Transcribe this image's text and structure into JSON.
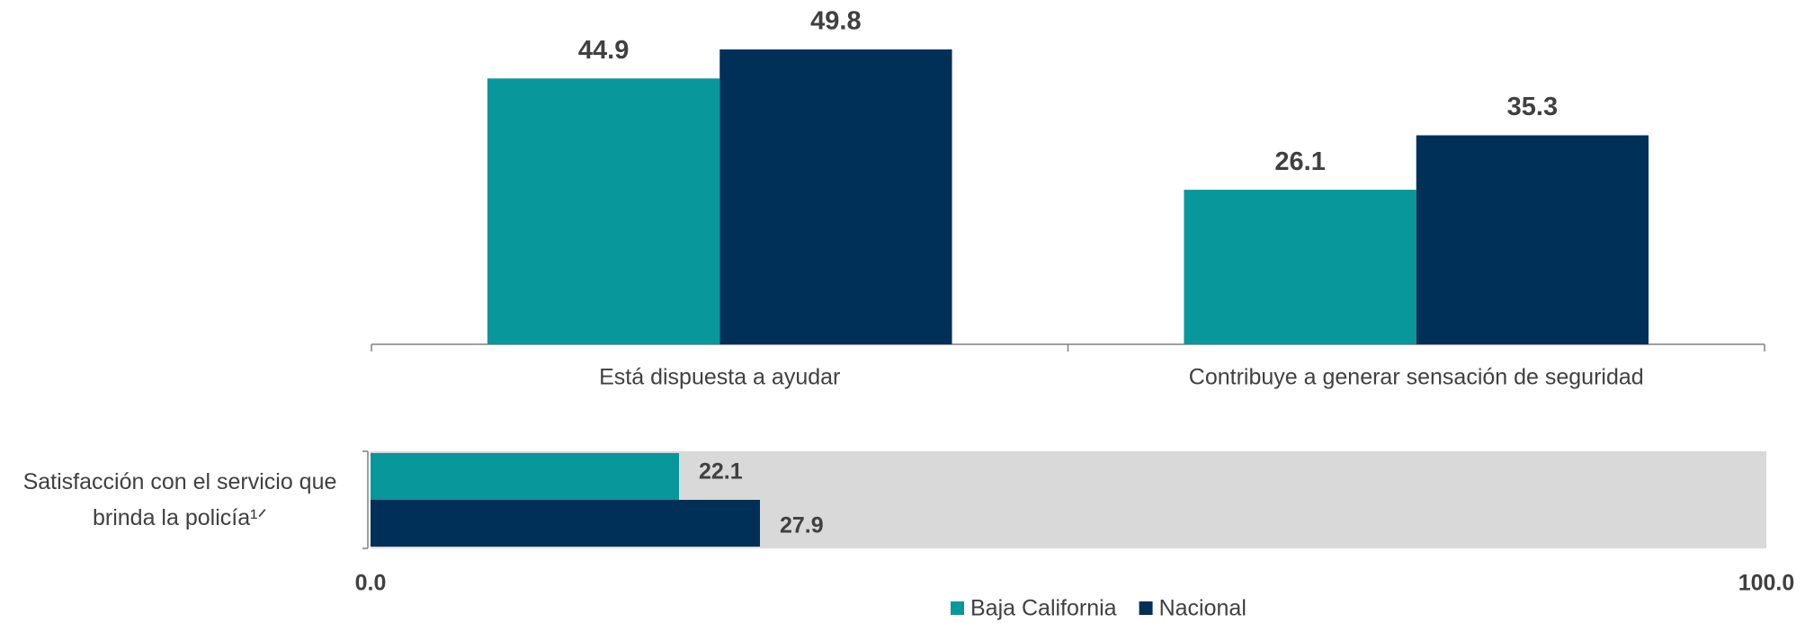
{
  "chart_data": [
    {
      "type": "bar",
      "categories": [
        "Está dispuesta a ayudar",
        "Contribuye a generar sensación de seguridad"
      ],
      "series": [
        {
          "color": "#08979a",
          "values": [
            44.9,
            26.1
          ]
        },
        {
          "color": "#003057",
          "values": [
            49.8,
            35.3
          ]
        }
      ]
    },
    {
      "type": "hbar",
      "categories": [
        "Satisfacción con el servicio que brinda la policía¹ᐟ"
      ],
      "series": [
        {
          "name": "Baja California",
          "color": "#08979a",
          "values": [
            22.1
          ]
        },
        {
          "name": "Nacional",
          "color": "#003057",
          "values": [
            27.9
          ]
        }
      ],
      "xlim": [
        0,
        100
      ],
      "xticks": [
        {
          "value": 0,
          "label": "0.0"
        },
        {
          "value": 100,
          "label": "100.0"
        }
      ],
      "background": "#d9d9d9",
      "legend": "bottom"
    }
  ]
}
